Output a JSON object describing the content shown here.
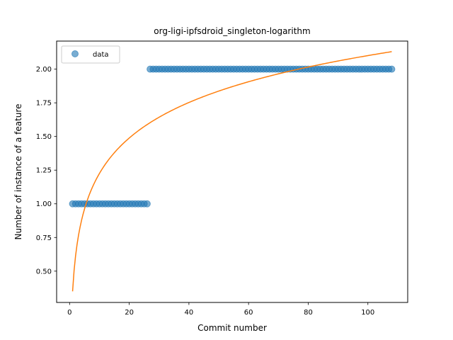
{
  "chart_data": {
    "type": "scatter",
    "title": "org-ligi-ipfsdroid_singleton-logarithm",
    "xlabel": "Commit number",
    "ylabel": "Number of instance of a feature",
    "xlim": [
      -4.35,
      113.35
    ],
    "ylim": [
      0.2675,
      2.2085
    ],
    "x_ticks": [
      0,
      20,
      40,
      60,
      80,
      100
    ],
    "x_tick_labels": [
      "0",
      "20",
      "40",
      "60",
      "80",
      "100"
    ],
    "y_ticks": [
      0.5,
      0.75,
      1.0,
      1.25,
      1.5,
      1.75,
      2.0
    ],
    "y_tick_labels": [
      "0.50",
      "0.75",
      "1.00",
      "1.25",
      "1.50",
      "1.75",
      "2.00"
    ],
    "grid": false,
    "legend_position": "upper-left",
    "series": [
      {
        "name": "data",
        "kind": "scatter",
        "color": "#1f77b4",
        "segments": [
          {
            "x_start": 1,
            "x_end": 26,
            "y": 1.0
          },
          {
            "x_start": 27,
            "x_end": 108,
            "y": 2.0
          }
        ]
      },
      {
        "kind": "line",
        "color": "#ff7f0e",
        "model": "logarithmic",
        "points": [
          {
            "x": 1,
            "y": 0.35
          },
          {
            "x": 108,
            "y": 2.13
          }
        ]
      }
    ]
  }
}
